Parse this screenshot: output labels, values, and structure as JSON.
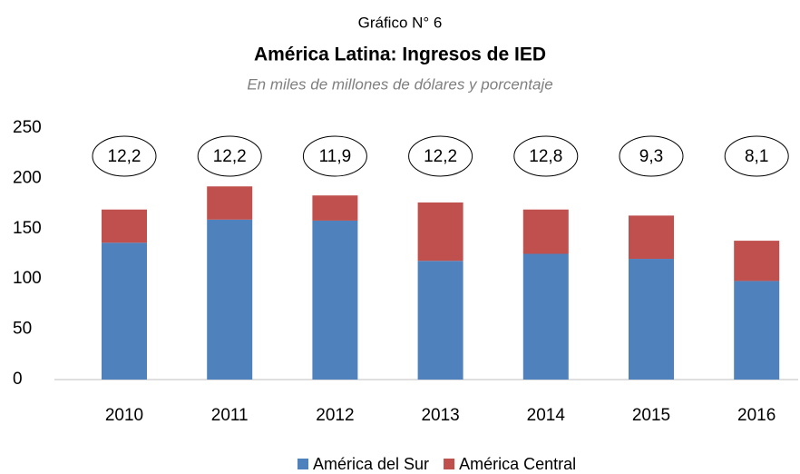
{
  "chart_data": {
    "type": "stacked_bar",
    "kicker": "Gráfico N° 6",
    "title": "América Latina: Ingresos de IED",
    "subtitle": "En miles de millones de dólares y porcentaje",
    "categories": [
      "2010",
      "2011",
      "2012",
      "2013",
      "2014",
      "2015",
      "2016"
    ],
    "series": [
      {
        "name": "América del Sur",
        "color": "#4f81bd",
        "values": [
          136,
          159,
          158,
          118,
          125,
          120,
          98
        ]
      },
      {
        "name": "América Central",
        "color": "#c0504d",
        "values": [
          33,
          33,
          25,
          58,
          44,
          43,
          40
        ]
      }
    ],
    "annotations": [
      "12,2",
      "12,2",
      "11,9",
      "12,2",
      "12,8",
      "9,3",
      "8,1"
    ],
    "ylim": [
      0,
      250
    ],
    "yticks": [
      0,
      50,
      100,
      150,
      200,
      250
    ],
    "grid": false,
    "legend": "bottom"
  }
}
